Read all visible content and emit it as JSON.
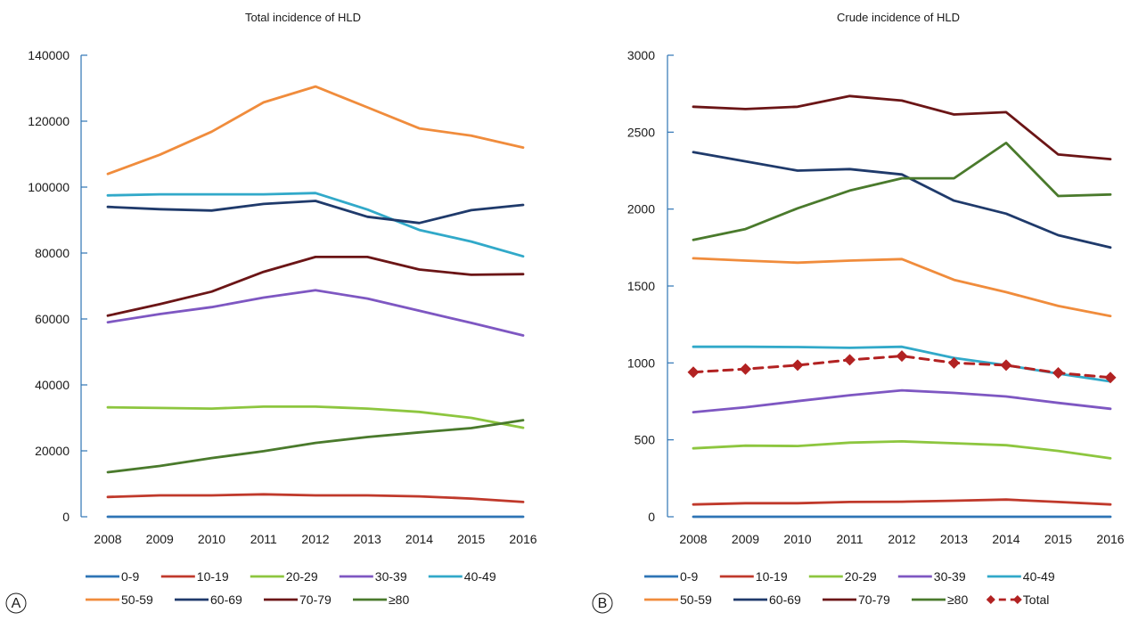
{
  "chart_data": [
    {
      "type": "line",
      "panel_label": "A",
      "title": "Total incidence of HLD",
      "xlabel": "",
      "ylabel": "",
      "x": [
        2008,
        2009,
        2010,
        2011,
        2012,
        2013,
        2014,
        2015,
        2016
      ],
      "y_ticks": [
        0,
        20000,
        40000,
        60000,
        80000,
        100000,
        120000,
        140000
      ],
      "ylim": [
        0,
        140000
      ],
      "grid": false,
      "legend_position": "bottom",
      "series": [
        {
          "name": "0-9",
          "color": "#2e74b5",
          "values": [
            0,
            0,
            0,
            0,
            0,
            0,
            0,
            0,
            0
          ]
        },
        {
          "name": "10-19",
          "color": "#c0392b",
          "values": [
            6000,
            6500,
            6500,
            6800,
            6500,
            6500,
            6200,
            5500,
            4500
          ]
        },
        {
          "name": "20-29",
          "color": "#8dc63f",
          "values": [
            33200,
            33000,
            32800,
            33400,
            33400,
            32800,
            31800,
            30000,
            27000
          ]
        },
        {
          "name": "30-39",
          "color": "#7e57c2",
          "values": [
            59000,
            61500,
            63600,
            66500,
            68700,
            66200,
            62500,
            58800,
            55000
          ]
        },
        {
          "name": "40-49",
          "color": "#31a9c9",
          "values": [
            97500,
            97800,
            97800,
            97800,
            98200,
            93200,
            87000,
            83500,
            79000
          ]
        },
        {
          "name": "50-59",
          "color": "#f08c3c",
          "values": [
            104000,
            109800,
            116800,
            125700,
            130500,
            124200,
            117800,
            115600,
            112000
          ]
        },
        {
          "name": "60-69",
          "color": "#1f3a6b",
          "values": [
            94000,
            93300,
            92900,
            94900,
            95800,
            91000,
            89100,
            93000,
            94600
          ]
        },
        {
          "name": "70-79",
          "color": "#6b1516",
          "values": [
            61000,
            64500,
            68300,
            74300,
            78800,
            78800,
            75000,
            73400,
            73600
          ]
        },
        {
          "name": "≥80",
          "color": "#4a7a2c",
          "values": [
            13500,
            15400,
            17800,
            19900,
            22400,
            24200,
            25600,
            26900,
            29300
          ]
        }
      ],
      "legend_rows": [
        [
          "0-9",
          "10-19",
          "20-29",
          "30-39",
          "40-49"
        ],
        [
          "50-59",
          "60-69",
          "70-79",
          "≥80"
        ]
      ]
    },
    {
      "type": "line",
      "panel_label": "B",
      "title": "Crude incidence of HLD",
      "xlabel": "",
      "ylabel": "",
      "x": [
        2008,
        2009,
        2010,
        2011,
        2012,
        2013,
        2014,
        2015,
        2016
      ],
      "y_ticks": [
        0,
        500,
        1000,
        1500,
        2000,
        2500,
        3000
      ],
      "ylim": [
        0,
        3000
      ],
      "grid": false,
      "legend_position": "bottom",
      "series": [
        {
          "name": "0-9",
          "color": "#2e74b5",
          "values": [
            0,
            0,
            0,
            0,
            0,
            0,
            0,
            0,
            0
          ]
        },
        {
          "name": "10-19",
          "color": "#c0392b",
          "values": [
            80,
            88,
            88,
            96,
            98,
            104,
            112,
            96,
            80
          ]
        },
        {
          "name": "20-29",
          "color": "#8dc63f",
          "values": [
            445,
            462,
            460,
            482,
            490,
            478,
            465,
            428,
            380
          ]
        },
        {
          "name": "30-39",
          "color": "#7e57c2",
          "values": [
            680,
            712,
            752,
            790,
            822,
            805,
            782,
            740,
            702
          ]
        },
        {
          "name": "40-49",
          "color": "#31a9c9",
          "values": [
            1105,
            1105,
            1103,
            1098,
            1105,
            1032,
            985,
            930,
            880
          ]
        },
        {
          "name": "50-59",
          "color": "#f08c3c",
          "values": [
            1680,
            1665,
            1652,
            1665,
            1675,
            1540,
            1460,
            1370,
            1305
          ]
        },
        {
          "name": "60-69",
          "color": "#1f3a6b",
          "values": [
            2370,
            2310,
            2250,
            2260,
            2225,
            2055,
            1970,
            1830,
            1750
          ]
        },
        {
          "name": "70-79",
          "color": "#6b1516",
          "values": [
            2665,
            2650,
            2665,
            2735,
            2705,
            2615,
            2630,
            2355,
            2325
          ]
        },
        {
          "name": "≥80",
          "color": "#4a7a2c",
          "values": [
            1800,
            1870,
            2005,
            2120,
            2200,
            2200,
            2430,
            2085,
            2095
          ]
        },
        {
          "name": "Total",
          "color": "#b22222",
          "dashed": true,
          "markers": "diamond",
          "values": [
            940,
            960,
            985,
            1020,
            1045,
            1000,
            985,
            935,
            905
          ]
        }
      ],
      "legend_rows": [
        [
          "0-9",
          "10-19",
          "20-29",
          "30-39",
          "40-49"
        ],
        [
          "50-59",
          "60-69",
          "70-79",
          "≥80",
          "Total"
        ]
      ]
    }
  ]
}
